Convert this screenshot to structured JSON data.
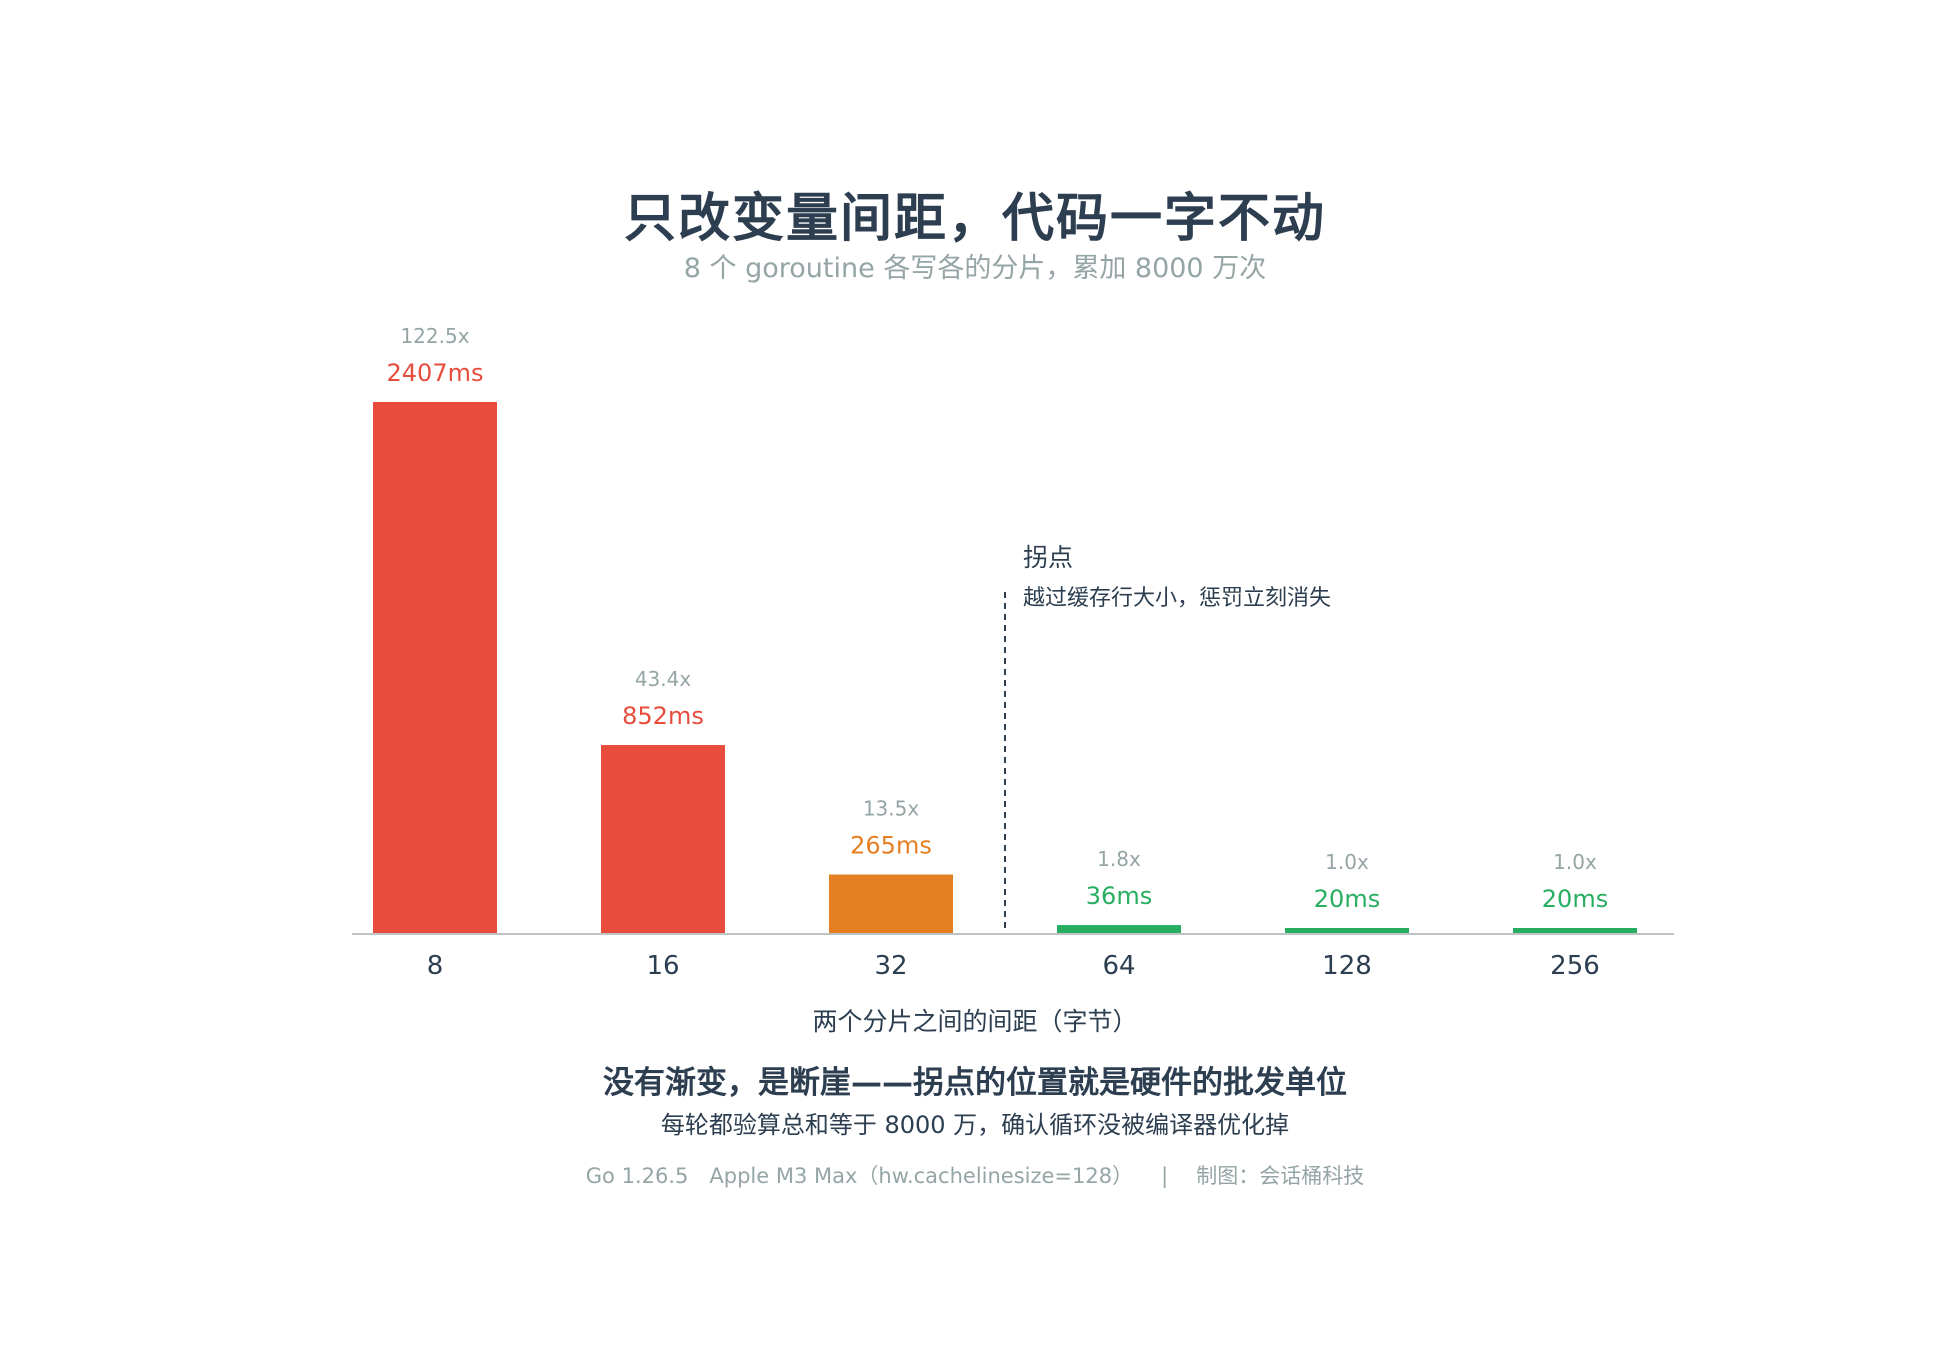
{
  "header": {
    "title": "只改变量间距，代码一字不动",
    "subtitle": "8 个 goroutine 各写各的分片，累加 8000 万次"
  },
  "annotation": {
    "title": "拐点",
    "subtitle": "越过缓存行大小，惩罚立刻消失"
  },
  "takeaway": {
    "headline": "没有渐变，是断崖——拐点的位置就是硬件的批发单位",
    "detail": "每轮都验算总和等于 8000 万，确认循环没被编译器优化掉"
  },
  "footer": {
    "env": "Go 1.26.5　Apple M3 Max（hw.cachelinesize=128）",
    "separator": "|",
    "credit": "制图：会话桶科技"
  },
  "colors": {
    "red": "#e74c3c",
    "orange": "#e67e22",
    "green": "#27ae60",
    "ratio_text": "#95a5a6",
    "axis": "#bdc3c7",
    "text": "#2c3e50"
  },
  "chart_data": {
    "type": "bar",
    "xlabel": "两个分片之间的间距（字节）",
    "ylabel": "",
    "categories": [
      "8",
      "16",
      "32",
      "64",
      "128",
      "256"
    ],
    "values": [
      2407,
      852,
      265,
      36,
      20,
      20
    ],
    "value_labels": [
      "2407ms",
      "852ms",
      "265ms",
      "36ms",
      "20ms",
      "20ms"
    ],
    "ratio_labels": [
      "122.5x",
      "43.4x",
      "13.5x",
      "1.8x",
      "1.0x",
      "1.0x"
    ],
    "bar_colors": [
      "red",
      "red",
      "orange",
      "green",
      "green",
      "green"
    ],
    "ylim": [
      0,
      2407
    ],
    "grid": false,
    "divider_between": [
      "32",
      "64"
    ]
  }
}
